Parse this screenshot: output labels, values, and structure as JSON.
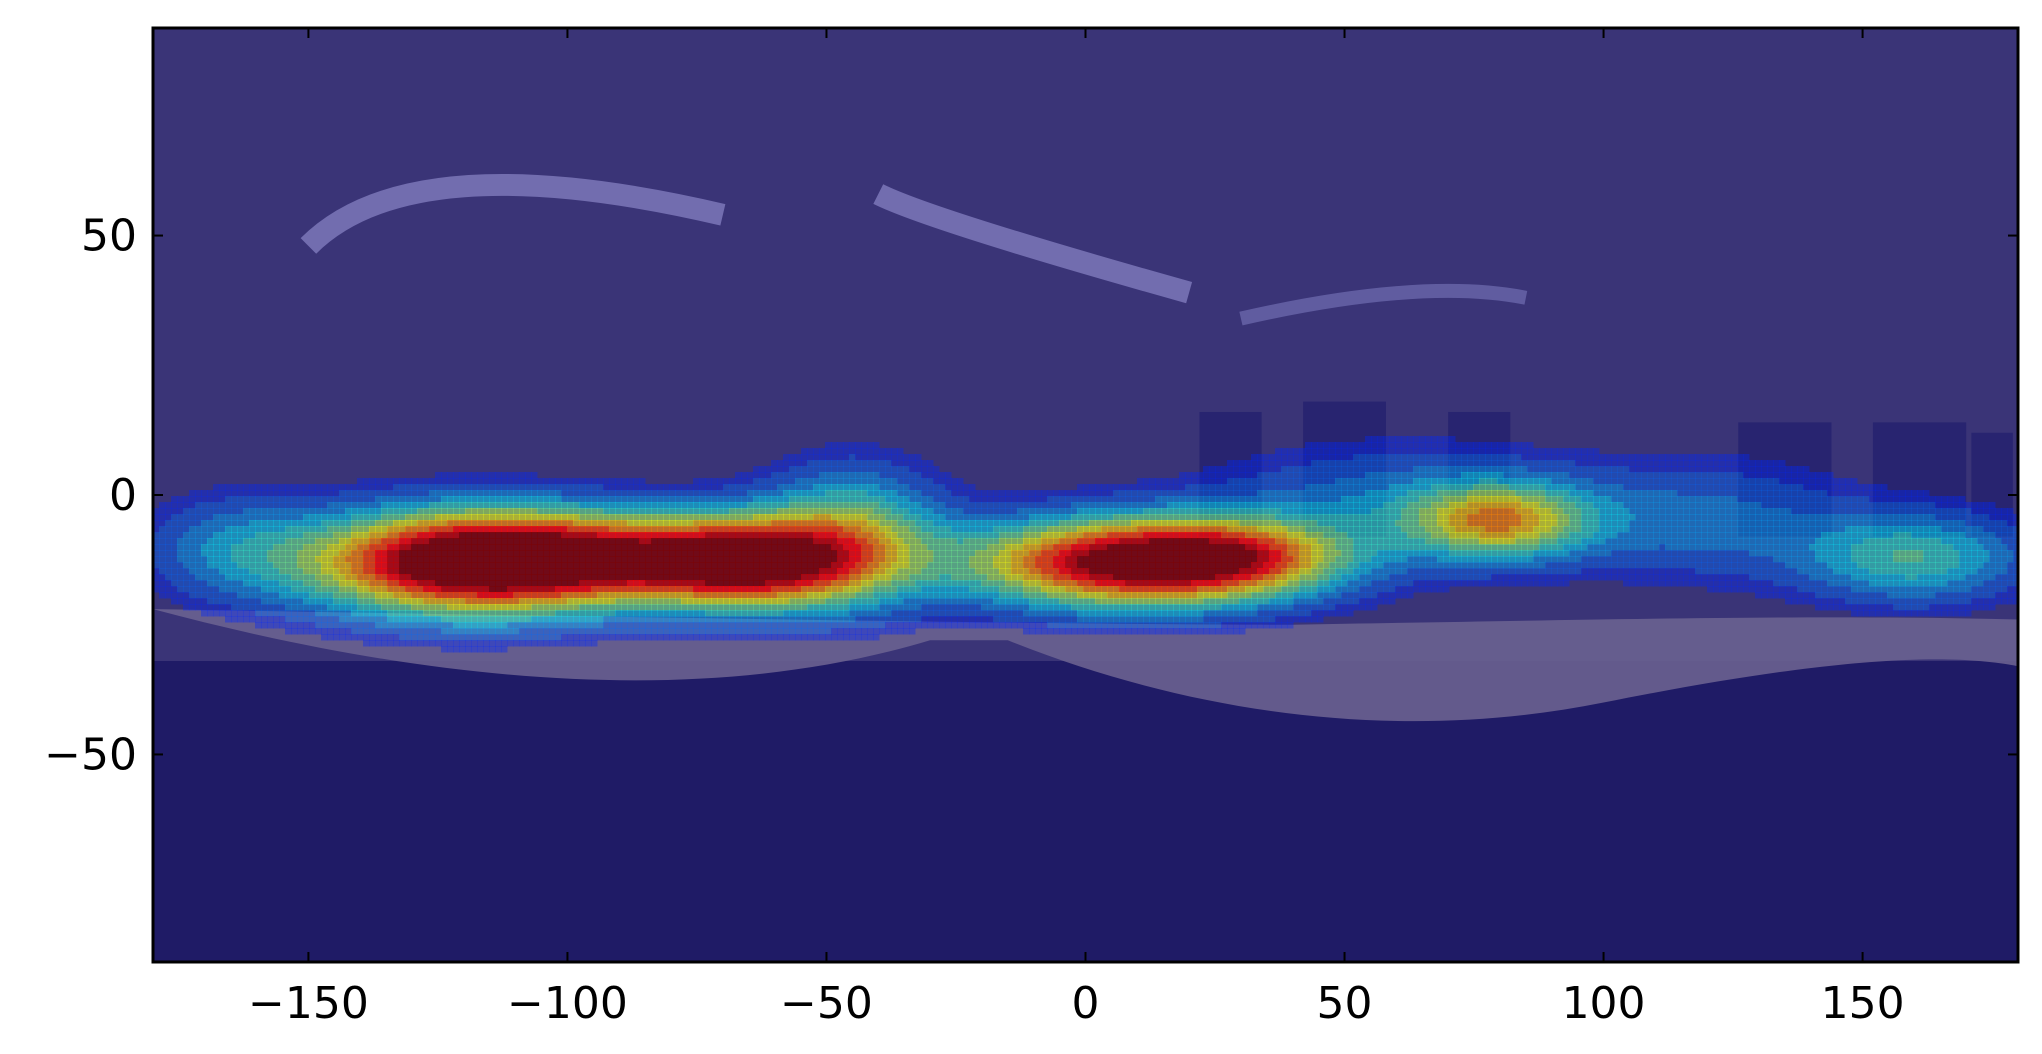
{
  "chart_data": {
    "type": "heatmap",
    "title": "",
    "xlabel": "",
    "ylabel": "",
    "xlim": [
      -180,
      180
    ],
    "ylim": [
      -90,
      90
    ],
    "xticks": [
      -150,
      -100,
      -50,
      0,
      50,
      100,
      150
    ],
    "yticks": [
      -50,
      0,
      50
    ],
    "xtick_labels": [
      "−150",
      "−100",
      "−50",
      "0",
      "50",
      "100",
      "150"
    ],
    "ytick_labels": [
      "−50",
      "0",
      "50"
    ],
    "grid": false,
    "colormap": "jet",
    "background_color": "#3a3477",
    "hotspots": [
      {
        "x": -120,
        "y": -13,
        "sx": 22,
        "sy": 7,
        "intensity": 1.0
      },
      {
        "x": -95,
        "y": -12,
        "sx": 22,
        "sy": 6,
        "intensity": 0.55
      },
      {
        "x": -65,
        "y": -13,
        "sx": 15,
        "sy": 6,
        "intensity": 0.9
      },
      {
        "x": -45,
        "y": -8,
        "sx": 12,
        "sy": 9,
        "intensity": 0.45
      },
      {
        "x": 8,
        "y": -13,
        "sx": 22,
        "sy": 6,
        "intensity": 1.0
      },
      {
        "x": 30,
        "y": -12,
        "sx": 15,
        "sy": 5,
        "intensity": 0.4
      },
      {
        "x": 80,
        "y": -5,
        "sx": 12,
        "sy": 5,
        "intensity": 0.55
      },
      {
        "x": 60,
        "y": -2,
        "sx": 25,
        "sy": 8,
        "intensity": 0.22
      },
      {
        "x": 160,
        "y": -12,
        "sx": 15,
        "sy": 6,
        "intensity": 0.38
      },
      {
        "x": 120,
        "y": -5,
        "sx": 20,
        "sy": 8,
        "intensity": 0.2
      },
      {
        "x": -165,
        "y": -10,
        "sx": 12,
        "sy": 7,
        "intensity": 0.2
      }
    ]
  }
}
